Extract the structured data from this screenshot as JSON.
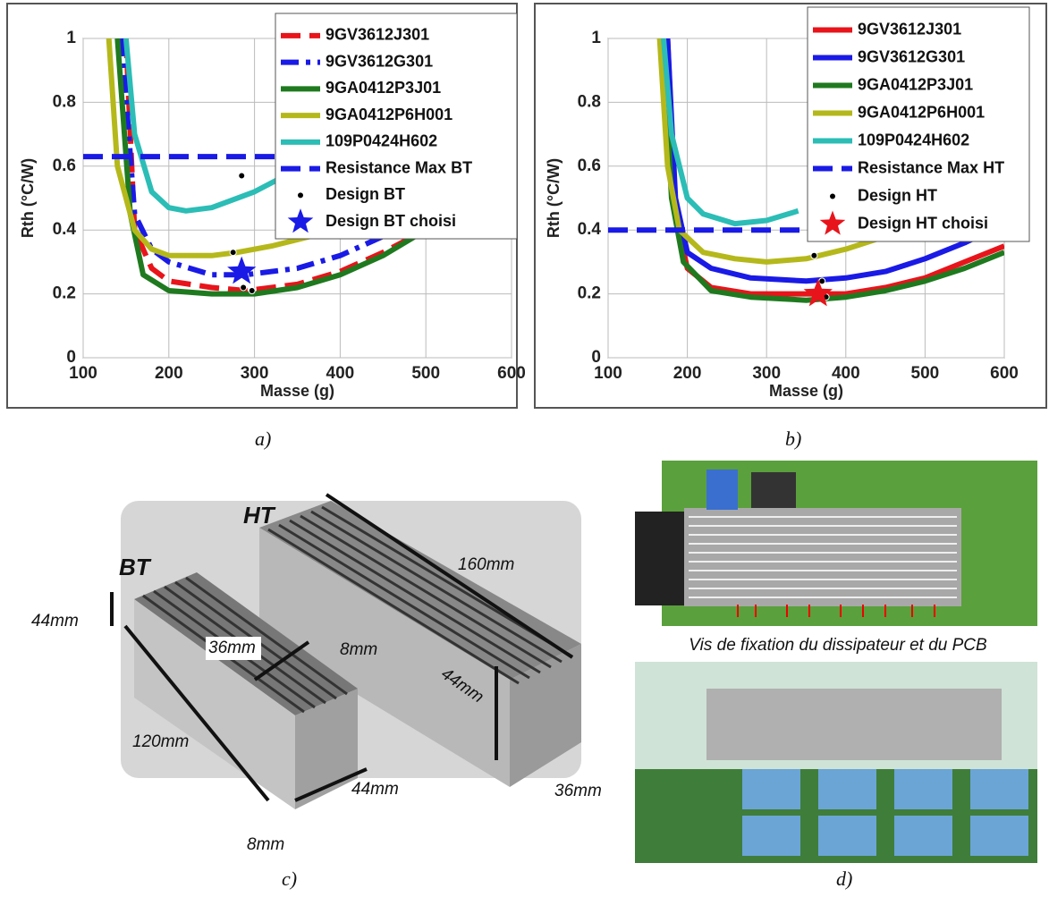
{
  "chart_data": [
    {
      "type": "line",
      "xlabel": "Masse (g)",
      "ylabel": "Rth (°C/W)",
      "xlim": [
        100,
        600
      ],
      "ylim": [
        0,
        1
      ],
      "xticks": [
        100,
        200,
        300,
        400,
        500,
        600
      ],
      "yticks": [
        0,
        0.2,
        0.4,
        0.6,
        0.8,
        1
      ],
      "grid": true,
      "series": [
        {
          "name": "9GV3612J301",
          "color": "#e8141b",
          "dash": "dashed",
          "x": [
            150,
            160,
            180,
            200,
            250,
            290,
            350,
            400,
            450,
            500
          ],
          "values": [
            1,
            0.4,
            0.28,
            0.24,
            0.22,
            0.21,
            0.23,
            0.27,
            0.33,
            0.4
          ]
        },
        {
          "name": "9GV3612G301",
          "color": "#1a1ae6",
          "dash": "dashdot",
          "x": [
            145,
            160,
            180,
            200,
            250,
            290,
            350,
            400,
            450
          ],
          "values": [
            1,
            0.45,
            0.34,
            0.3,
            0.26,
            0.26,
            0.28,
            0.32,
            0.38
          ]
        },
        {
          "name": "9GA0412P3J01",
          "color": "#1f7a1f",
          "dash": "solid",
          "x": [
            140,
            155,
            170,
            200,
            250,
            300,
            350,
            400,
            450,
            500
          ],
          "values": [
            1,
            0.45,
            0.26,
            0.21,
            0.2,
            0.2,
            0.22,
            0.26,
            0.32,
            0.4
          ]
        },
        {
          "name": "9GA0412P6H001",
          "color": "#b5b81a",
          "dash": "solid",
          "x": [
            130,
            140,
            160,
            180,
            200,
            250,
            280,
            320,
            380,
            440
          ],
          "values": [
            1,
            0.6,
            0.4,
            0.34,
            0.32,
            0.32,
            0.33,
            0.35,
            0.39,
            0.45
          ]
        },
        {
          "name": "109P0424H602",
          "color": "#2bbdb6",
          "dash": "solid",
          "x": [
            150,
            160,
            180,
            200,
            220,
            250,
            300,
            350
          ],
          "values": [
            1,
            0.7,
            0.52,
            0.47,
            0.46,
            0.47,
            0.52,
            0.59
          ]
        },
        {
          "name": "Resistance Max BT",
          "color": "#1a1ae6",
          "dash": "dashed",
          "x": [
            100,
            600
          ],
          "values": [
            0.63,
            0.63
          ]
        },
        {
          "name": "Design BT",
          "color": "#000000",
          "marker": "dot",
          "x": [
            275,
            287,
            297,
            285
          ],
          "values": [
            0.33,
            0.22,
            0.21,
            0.57
          ]
        },
        {
          "name": "Design BT choisi",
          "color": "#1a1ae6",
          "marker": "star",
          "x": [
            285
          ],
          "values": [
            0.27
          ]
        }
      ]
    },
    {
      "type": "line",
      "xlabel": "Masse (g)",
      "ylabel": "Rth (°C/W)",
      "xlim": [
        100,
        600
      ],
      "ylim": [
        0,
        1
      ],
      "xticks": [
        100,
        200,
        300,
        400,
        500,
        600
      ],
      "yticks": [
        0,
        0.2,
        0.4,
        0.6,
        0.8,
        1
      ],
      "grid": true,
      "series": [
        {
          "name": "9GV3612J301",
          "color": "#e8141b",
          "dash": "solid",
          "x": [
            175,
            185,
            200,
            230,
            280,
            350,
            400,
            450,
            500,
            550,
            600
          ],
          "values": [
            1,
            0.45,
            0.28,
            0.22,
            0.2,
            0.2,
            0.2,
            0.22,
            0.25,
            0.3,
            0.35
          ]
        },
        {
          "name": "9GV3612G301",
          "color": "#1a1ae6",
          "dash": "solid",
          "x": [
            175,
            185,
            200,
            230,
            280,
            350,
            400,
            450,
            500,
            550,
            600
          ],
          "values": [
            1,
            0.5,
            0.33,
            0.28,
            0.25,
            0.24,
            0.25,
            0.27,
            0.31,
            0.36,
            0.42
          ]
        },
        {
          "name": "9GA0412P3J01",
          "color": "#1f7a1f",
          "dash": "solid",
          "x": [
            170,
            180,
            195,
            230,
            280,
            350,
            400,
            450,
            500,
            550,
            600
          ],
          "values": [
            1,
            0.5,
            0.3,
            0.21,
            0.19,
            0.18,
            0.19,
            0.21,
            0.24,
            0.28,
            0.33
          ]
        },
        {
          "name": "9GA0412P6H001",
          "color": "#b5b81a",
          "dash": "solid",
          "x": [
            165,
            175,
            190,
            220,
            260,
            300,
            350,
            400,
            450
          ],
          "values": [
            1,
            0.6,
            0.4,
            0.33,
            0.31,
            0.3,
            0.31,
            0.34,
            0.38
          ]
        },
        {
          "name": "109P0424H602",
          "color": "#2bbdb6",
          "dash": "solid",
          "x": [
            170,
            180,
            200,
            220,
            260,
            300,
            340
          ],
          "values": [
            1,
            0.7,
            0.5,
            0.45,
            0.42,
            0.43,
            0.46
          ]
        },
        {
          "name": "Resistance Max HT",
          "color": "#1a1ae6",
          "dash": "dashed",
          "x": [
            100,
            600
          ],
          "values": [
            0.4,
            0.4
          ]
        },
        {
          "name": "Design HT",
          "color": "#000000",
          "marker": "dot",
          "x": [
            360,
            370,
            375
          ],
          "values": [
            0.32,
            0.24,
            0.19
          ]
        },
        {
          "name": "Design HT choisi",
          "color": "#e8141b",
          "marker": "star",
          "x": [
            365
          ],
          "values": [
            0.2
          ]
        }
      ]
    }
  ],
  "captions": [
    "a)",
    "b)",
    "c)",
    "d)"
  ],
  "photo_c": {
    "labels": [
      "HT",
      "BT",
      "160mm",
      "44mm",
      "36mm",
      "8mm",
      "44mm",
      "120mm",
      "44mm",
      "36mm",
      "8mm"
    ]
  },
  "photo_d": {
    "caption": "Vis de fixation du dissipateur et du PCB"
  }
}
